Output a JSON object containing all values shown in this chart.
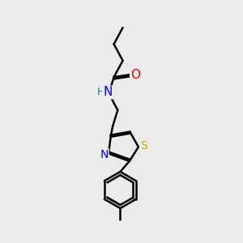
{
  "background_color": "#ebebeb",
  "bond_color": "#000000",
  "atom_colors": {
    "O": "#ff0000",
    "N": "#0000ff",
    "S": "#ccaa00",
    "H": "#008b8b"
  },
  "bond_width": 1.8,
  "font_size_atoms": 10
}
